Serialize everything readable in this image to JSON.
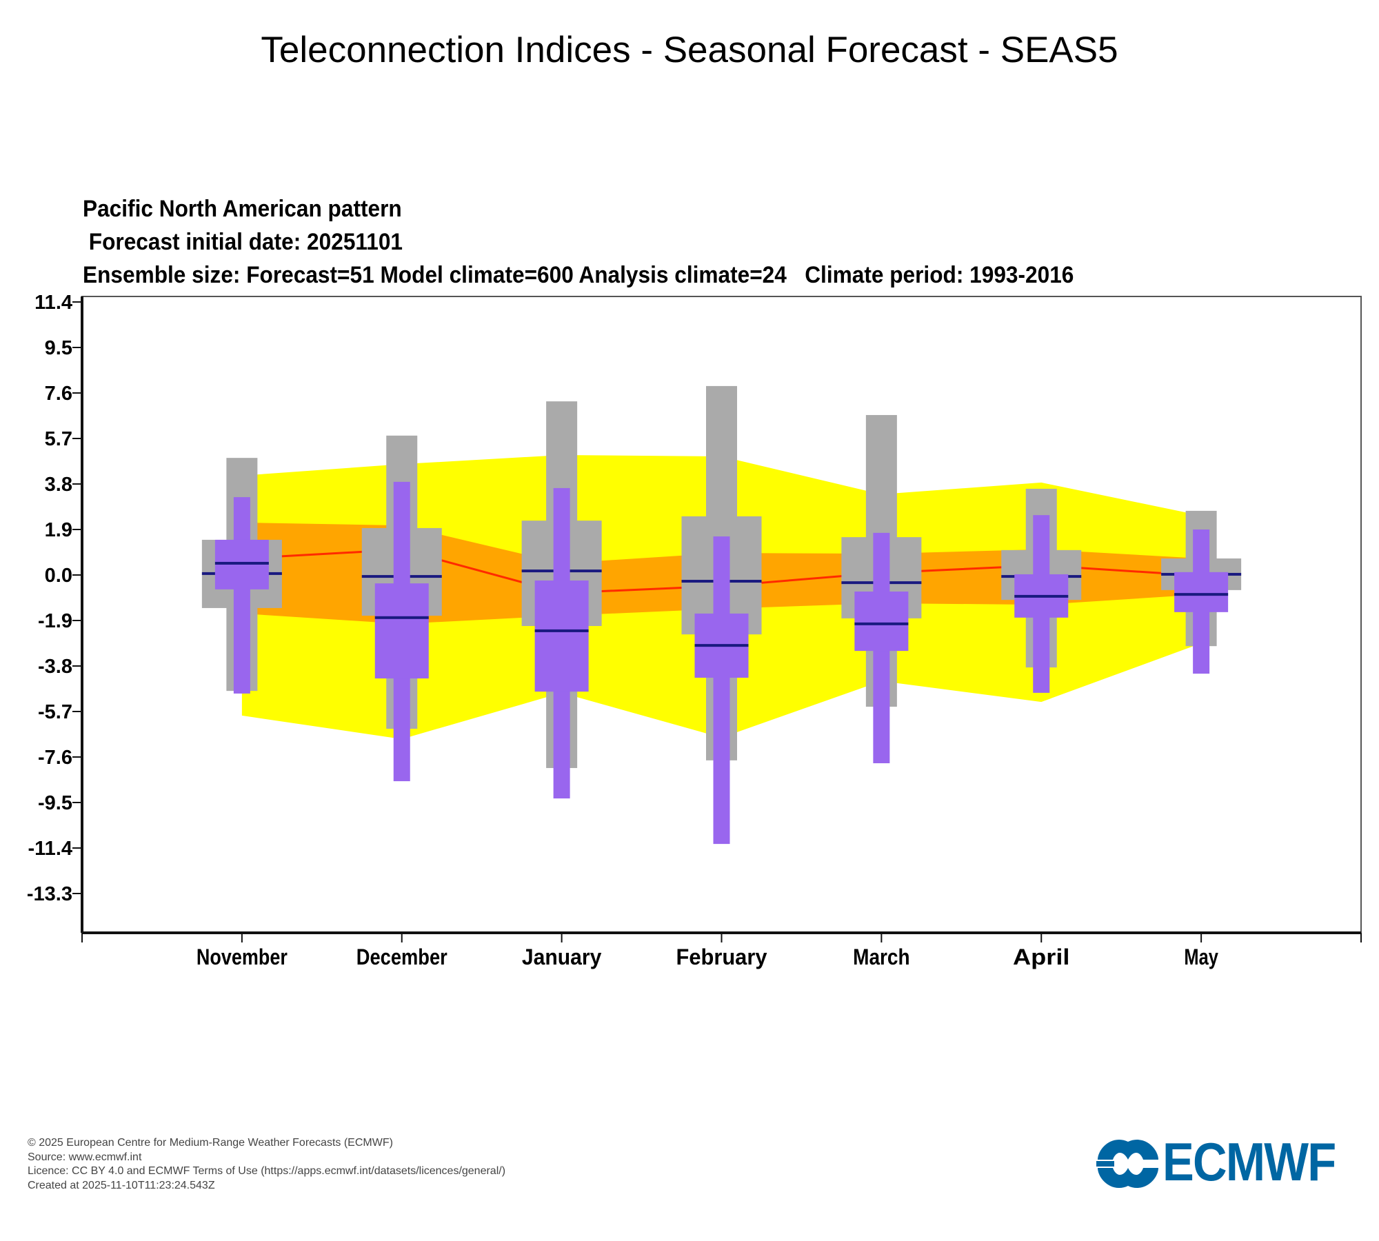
{
  "page": {
    "title": "Teleconnection Indices - Seasonal Forecast - SEAS5"
  },
  "chart_header": {
    "line1": "Pacific North American pattern",
    "line2": " Forecast initial date: 20251101",
    "line3": "Ensemble size: Forecast=51 Model climate=600 Analysis climate=24   Climate period: 1993-2016"
  },
  "footer": {
    "copyright": "© 2025 European Centre for Medium-Range Weather Forecasts (ECMWF)",
    "source": "Source: www.ecmwf.int",
    "licence": "Licence: CC BY 4.0 and ECMWF Terms of Use (https://apps.ecmwf.int/datasets/licences/general/)",
    "created": "Created at 2025-11-10T11:23:24.543Z"
  },
  "logo": {
    "text": "ECMWF",
    "icon": "ecmwf-logo-icon",
    "color": "#0066a3"
  },
  "chart_data": {
    "type": "box",
    "title": "Pacific North American pattern",
    "xlabel": "",
    "ylabel": "",
    "categories": [
      "November",
      "December",
      "January",
      "February",
      "March",
      "April",
      "May"
    ],
    "yticks": [
      "11.4",
      "9.5",
      "7.6",
      "5.7",
      "3.8",
      "1.9",
      "0.0",
      "-1.9",
      "-3.8",
      "-5.7",
      "-7.6",
      "-9.5",
      "-11.4",
      "-13.3"
    ],
    "ylim": [
      -14.9,
      11.7
    ],
    "grid": false,
    "colors": {
      "analysis_minmax_band": "#ffff00",
      "analysis_quartile_band": "#ffa500",
      "analysis_median_line": "#ff2a00",
      "model_climate_box": "#aaaaaa",
      "forecast_box": "#9966ee",
      "median_mark": "#1a1a80"
    },
    "analysis_climate": {
      "max": [
        4.15,
        4.63,
        5.01,
        4.95,
        3.37,
        3.86,
        2.48
      ],
      "upper": [
        2.19,
        2.07,
        0.49,
        0.92,
        0.89,
        1.07,
        0.69
      ],
      "median": [
        0.69,
        1.06,
        -0.75,
        -0.46,
        0.09,
        0.4,
        -0.03
      ],
      "lower": [
        -1.61,
        -2.04,
        -1.7,
        -1.41,
        -1.18,
        -1.24,
        -0.81
      ],
      "min": [
        -5.87,
        -6.85,
        -4.92,
        -6.79,
        -4.43,
        -5.3,
        -2.85
      ]
    },
    "series": [
      {
        "name": "Model climate",
        "whisker_high": [
          4.89,
          5.82,
          7.25,
          7.89,
          6.68,
          3.6,
          2.68
        ],
        "box_high": [
          1.47,
          1.96,
          2.27,
          2.45,
          1.58,
          1.04,
          0.69
        ],
        "median": [
          0.06,
          -0.06,
          0.17,
          -0.26,
          -0.32,
          -0.06,
          0.03
        ],
        "box_low": [
          -1.38,
          -1.7,
          -2.13,
          -2.48,
          -1.81,
          -1.04,
          -0.63
        ],
        "whisker_low": [
          -4.84,
          -6.42,
          -8.06,
          -7.74,
          -5.5,
          -3.86,
          -2.97
        ]
      },
      {
        "name": "Forecast",
        "whisker_high": [
          3.25,
          3.89,
          3.63,
          1.61,
          1.76,
          2.5,
          1.9
        ],
        "box_high": [
          1.47,
          -0.35,
          -0.23,
          -1.61,
          -0.69,
          0.03,
          0.12
        ],
        "median": [
          0.49,
          -1.78,
          -2.33,
          -2.94,
          -2.04,
          -0.89,
          -0.81
        ],
        "box_low": [
          -0.6,
          -4.32,
          -4.87,
          -4.29,
          -3.17,
          -1.78,
          -1.55
        ],
        "whisker_low": [
          -4.95,
          -8.61,
          -9.33,
          -11.23,
          -7.86,
          -4.92,
          -4.12
        ]
      }
    ]
  }
}
